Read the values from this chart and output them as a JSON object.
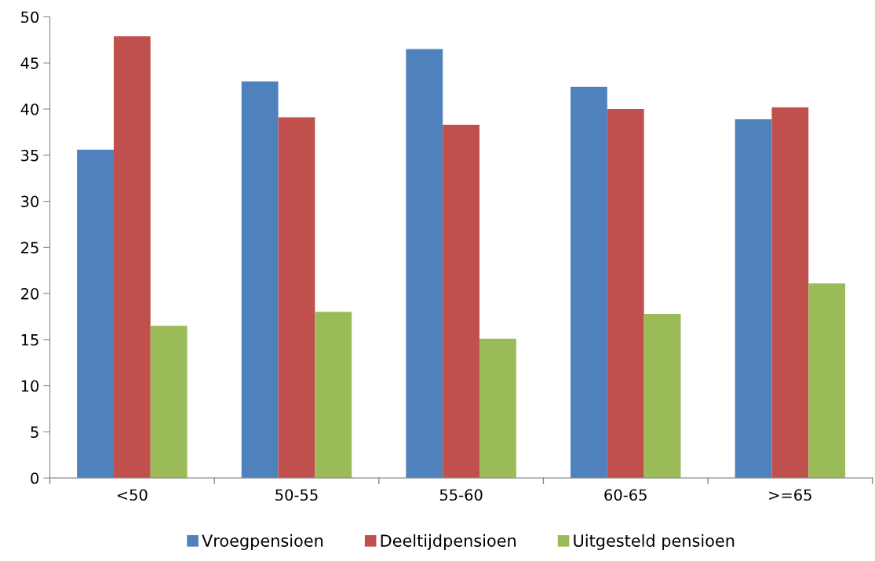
{
  "chart_data": {
    "type": "bar",
    "categories": [
      "<50",
      "50-55",
      "55-60",
      "60-65",
      ">=65"
    ],
    "series": [
      {
        "name": "Vroegpensioen",
        "color": "#4f81bd",
        "values": [
          35.6,
          43.0,
          46.5,
          42.4,
          38.9
        ]
      },
      {
        "name": "Deeltijdpensioen",
        "color": "#c0504d",
        "values": [
          47.9,
          39.1,
          38.3,
          40.0,
          40.2
        ]
      },
      {
        "name": "Uitgesteld pensioen",
        "color": "#9bbb59",
        "values": [
          16.5,
          18.0,
          15.1,
          17.8,
          21.1
        ]
      }
    ],
    "ylim": [
      0,
      50
    ],
    "yticks": [
      0,
      5,
      10,
      15,
      20,
      25,
      30,
      35,
      40,
      45,
      50
    ],
    "grid": false,
    "legend": "bottom"
  }
}
